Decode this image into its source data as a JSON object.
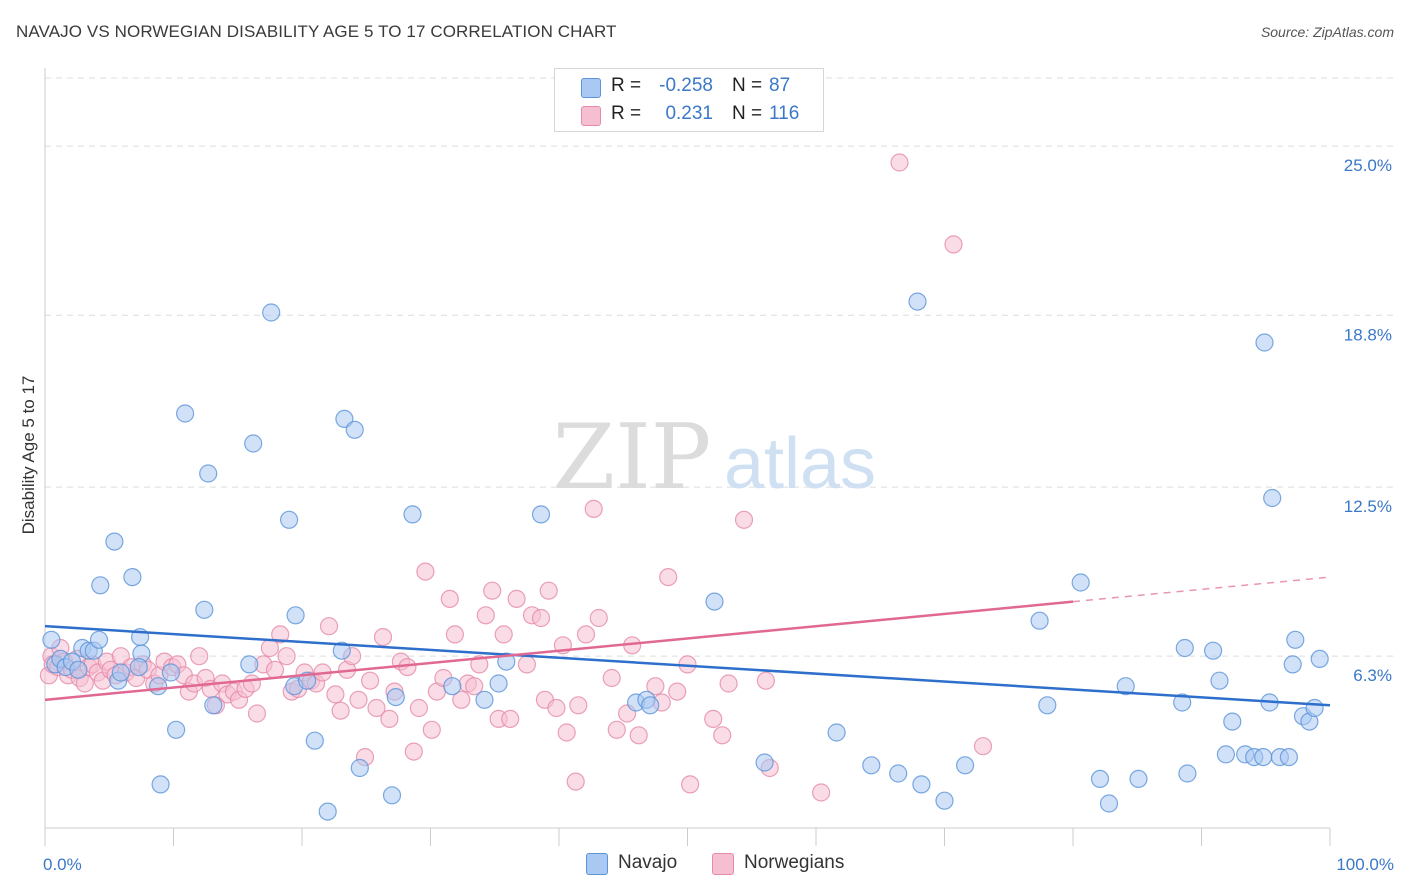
{
  "title": "NAVAJO VS NORWEGIAN DISABILITY AGE 5 TO 17 CORRELATION CHART",
  "source": "Source: ZipAtlas.com",
  "watermark": {
    "zip": "ZIP",
    "atlas": "atlas"
  },
  "legend": {
    "rows": [
      {
        "r_label": "R =",
        "r_value": "-0.258",
        "n_label": "N =",
        "n_value": "87",
        "color": "#a9c8f2"
      },
      {
        "r_label": "R =",
        "r_value": "0.231",
        "n_label": "N =",
        "n_value": "116",
        "color": "#f5b8cc"
      }
    ]
  },
  "bottom_legend": [
    "Navajo",
    "Norwegians"
  ],
  "colors": {
    "navajo_fill": "#a9c8f2",
    "navajo_stroke": "#5b94d8",
    "navajo_line": "#2e6fcc",
    "norw_fill": "#f5bfd1",
    "norw_stroke": "#e58aa8",
    "norw_line": "#e06893",
    "tick_label": "#3a78c8",
    "grid": "#dddddd"
  },
  "chart_data": {
    "type": "scatter",
    "title": "NAVAJO VS NORWEGIAN DISABILITY AGE 5 TO 17 CORRELATION CHART",
    "xlabel": "",
    "ylabel": "Disability Age 5 to 17",
    "xlim": [
      0,
      100
    ],
    "ylim": [
      0,
      27.5
    ],
    "x_tick_labels": [
      "0.0%",
      "100.0%"
    ],
    "y_ticks": [
      6.3,
      12.5,
      18.8,
      25.0
    ],
    "y_tick_labels": [
      "6.3%",
      "12.5%",
      "18.8%",
      "25.0%"
    ],
    "grid": true,
    "legend_position": "top-center",
    "series": [
      {
        "name": "Navajo",
        "R": -0.258,
        "N": 87,
        "trend": {
          "x": [
            0,
            100
          ],
          "y": [
            7.4,
            4.5
          ]
        },
        "points": [
          [
            0.5,
            6.9
          ],
          [
            0.8,
            6.0
          ],
          [
            1.2,
            6.2
          ],
          [
            1.6,
            5.9
          ],
          [
            2.1,
            6.1
          ],
          [
            2.6,
            5.8
          ],
          [
            2.9,
            6.6
          ],
          [
            3.4,
            6.5
          ],
          [
            3.8,
            6.5
          ],
          [
            4.2,
            6.9
          ],
          [
            4.3,
            8.9
          ],
          [
            5.4,
            10.5
          ],
          [
            5.7,
            5.4
          ],
          [
            5.9,
            5.7
          ],
          [
            6.8,
            9.2
          ],
          [
            7.4,
            7.0
          ],
          [
            7.5,
            6.4
          ],
          [
            7.3,
            5.9
          ],
          [
            8.8,
            5.2
          ],
          [
            9.0,
            1.6
          ],
          [
            9.8,
            5.7
          ],
          [
            10.2,
            3.6
          ],
          [
            10.9,
            15.2
          ],
          [
            12.4,
            8.0
          ],
          [
            12.7,
            13.0
          ],
          [
            13.1,
            4.5
          ],
          [
            15.9,
            6.0
          ],
          [
            16.2,
            14.1
          ],
          [
            17.6,
            18.9
          ],
          [
            19.0,
            11.3
          ],
          [
            19.4,
            5.2
          ],
          [
            19.5,
            7.8
          ],
          [
            20.4,
            5.4
          ],
          [
            21.0,
            3.2
          ],
          [
            22.0,
            0.6
          ],
          [
            23.1,
            6.5
          ],
          [
            23.3,
            15.0
          ],
          [
            24.1,
            14.6
          ],
          [
            24.5,
            2.2
          ],
          [
            27.0,
            1.2
          ],
          [
            27.3,
            4.8
          ],
          [
            28.6,
            11.5
          ],
          [
            31.7,
            5.2
          ],
          [
            34.2,
            4.7
          ],
          [
            35.3,
            5.3
          ],
          [
            35.9,
            6.1
          ],
          [
            38.6,
            11.5
          ],
          [
            46.0,
            4.6
          ],
          [
            46.8,
            4.7
          ],
          [
            47.1,
            4.5
          ],
          [
            52.1,
            8.3
          ],
          [
            56.0,
            2.4
          ],
          [
            61.6,
            3.5
          ],
          [
            64.3,
            2.3
          ],
          [
            66.4,
            2.0
          ],
          [
            67.9,
            19.3
          ],
          [
            68.2,
            1.6
          ],
          [
            70.0,
            1.0
          ],
          [
            71.6,
            2.3
          ],
          [
            77.4,
            7.6
          ],
          [
            78.0,
            4.5
          ],
          [
            80.6,
            9.0
          ],
          [
            82.1,
            1.8
          ],
          [
            82.8,
            0.9
          ],
          [
            84.1,
            5.2
          ],
          [
            85.1,
            1.8
          ],
          [
            88.5,
            4.6
          ],
          [
            88.7,
            6.6
          ],
          [
            88.9,
            2.0
          ],
          [
            90.9,
            6.5
          ],
          [
            91.4,
            5.4
          ],
          [
            91.9,
            2.7
          ],
          [
            92.4,
            3.9
          ],
          [
            93.4,
            2.7
          ],
          [
            94.1,
            2.6
          ],
          [
            94.8,
            2.6
          ],
          [
            94.9,
            17.8
          ],
          [
            95.3,
            4.6
          ],
          [
            95.5,
            12.1
          ],
          [
            96.1,
            2.6
          ],
          [
            96.8,
            2.6
          ],
          [
            97.1,
            6.0
          ],
          [
            97.3,
            6.9
          ],
          [
            97.9,
            4.1
          ],
          [
            98.4,
            3.9
          ],
          [
            98.8,
            4.4
          ],
          [
            99.2,
            6.2
          ]
        ]
      },
      {
        "name": "Norwegians",
        "R": 0.231,
        "N": 116,
        "trend": {
          "x": [
            0,
            80
          ],
          "y": [
            4.7,
            8.3
          ]
        },
        "trend_extension": {
          "x": [
            80,
            100
          ],
          "y": [
            8.3,
            9.2
          ]
        },
        "points": [
          [
            0.3,
            5.6
          ],
          [
            0.5,
            6.3
          ],
          [
            0.6,
            6.0
          ],
          [
            1.0,
            5.9
          ],
          [
            1.2,
            6.6
          ],
          [
            1.5,
            6.1
          ],
          [
            1.8,
            5.6
          ],
          [
            2.1,
            5.8
          ],
          [
            2.5,
            6.2
          ],
          [
            2.7,
            5.5
          ],
          [
            3.1,
            5.3
          ],
          [
            3.4,
            5.9
          ],
          [
            3.7,
            6.0
          ],
          [
            4.1,
            5.7
          ],
          [
            4.5,
            5.4
          ],
          [
            4.8,
            6.1
          ],
          [
            5.1,
            5.8
          ],
          [
            5.5,
            5.6
          ],
          [
            5.9,
            6.3
          ],
          [
            6.3,
            5.7
          ],
          [
            6.7,
            5.9
          ],
          [
            7.1,
            5.5
          ],
          [
            7.6,
            6.0
          ],
          [
            8.0,
            5.8
          ],
          [
            8.5,
            5.3
          ],
          [
            8.9,
            5.6
          ],
          [
            9.3,
            6.1
          ],
          [
            9.9,
            5.9
          ],
          [
            10.3,
            6.0
          ],
          [
            10.8,
            5.6
          ],
          [
            11.2,
            5.0
          ],
          [
            11.6,
            5.3
          ],
          [
            12.0,
            6.3
          ],
          [
            12.5,
            5.5
          ],
          [
            12.9,
            5.1
          ],
          [
            13.3,
            4.5
          ],
          [
            13.8,
            5.3
          ],
          [
            14.2,
            4.9
          ],
          [
            14.7,
            5.0
          ],
          [
            15.1,
            4.7
          ],
          [
            15.6,
            5.1
          ],
          [
            16.1,
            5.3
          ],
          [
            16.5,
            4.2
          ],
          [
            17.0,
            6.0
          ],
          [
            17.5,
            6.6
          ],
          [
            17.9,
            5.8
          ],
          [
            18.3,
            7.1
          ],
          [
            18.8,
            6.3
          ],
          [
            19.2,
            5.0
          ],
          [
            19.7,
            5.1
          ],
          [
            20.2,
            5.7
          ],
          [
            20.7,
            5.4
          ],
          [
            21.1,
            5.3
          ],
          [
            21.6,
            5.7
          ],
          [
            22.1,
            7.4
          ],
          [
            22.6,
            4.9
          ],
          [
            23.0,
            4.3
          ],
          [
            23.5,
            5.8
          ],
          [
            23.9,
            6.3
          ],
          [
            24.4,
            4.7
          ],
          [
            24.9,
            2.6
          ],
          [
            25.3,
            5.4
          ],
          [
            25.8,
            4.4
          ],
          [
            26.3,
            7.0
          ],
          [
            26.8,
            4.0
          ],
          [
            27.2,
            5.0
          ],
          [
            27.7,
            6.1
          ],
          [
            28.2,
            5.9
          ],
          [
            28.7,
            2.8
          ],
          [
            29.1,
            4.4
          ],
          [
            29.6,
            9.4
          ],
          [
            30.1,
            3.6
          ],
          [
            30.5,
            5.0
          ],
          [
            31.0,
            5.5
          ],
          [
            31.5,
            8.4
          ],
          [
            31.9,
            7.1
          ],
          [
            32.4,
            4.7
          ],
          [
            32.9,
            5.3
          ],
          [
            33.4,
            5.2
          ],
          [
            33.8,
            6.0
          ],
          [
            34.3,
            7.8
          ],
          [
            34.8,
            8.7
          ],
          [
            35.3,
            4.0
          ],
          [
            35.7,
            7.1
          ],
          [
            36.2,
            4.0
          ],
          [
            36.7,
            8.4
          ],
          [
            37.5,
            6.0
          ],
          [
            37.9,
            7.8
          ],
          [
            38.6,
            7.7
          ],
          [
            38.9,
            4.7
          ],
          [
            39.2,
            8.7
          ],
          [
            39.8,
            4.4
          ],
          [
            40.3,
            6.7
          ],
          [
            40.6,
            3.5
          ],
          [
            41.3,
            1.7
          ],
          [
            41.5,
            4.5
          ],
          [
            42.1,
            7.1
          ],
          [
            42.7,
            11.7
          ],
          [
            43.1,
            7.7
          ],
          [
            44.1,
            5.5
          ],
          [
            44.5,
            3.6
          ],
          [
            45.3,
            4.2
          ],
          [
            45.7,
            6.7
          ],
          [
            46.2,
            3.4
          ],
          [
            47.5,
            5.2
          ],
          [
            48.0,
            4.6
          ],
          [
            48.5,
            9.2
          ],
          [
            49.2,
            5.0
          ],
          [
            50.0,
            6.0
          ],
          [
            50.2,
            1.6
          ],
          [
            52.0,
            4.0
          ],
          [
            52.7,
            3.4
          ],
          [
            53.2,
            5.3
          ],
          [
            54.4,
            11.3
          ],
          [
            56.1,
            5.4
          ],
          [
            56.4,
            2.2
          ],
          [
            60.4,
            1.3
          ],
          [
            70.7,
            21.4
          ],
          [
            73.0,
            3.0
          ],
          [
            66.5,
            24.4
          ]
        ]
      }
    ]
  }
}
